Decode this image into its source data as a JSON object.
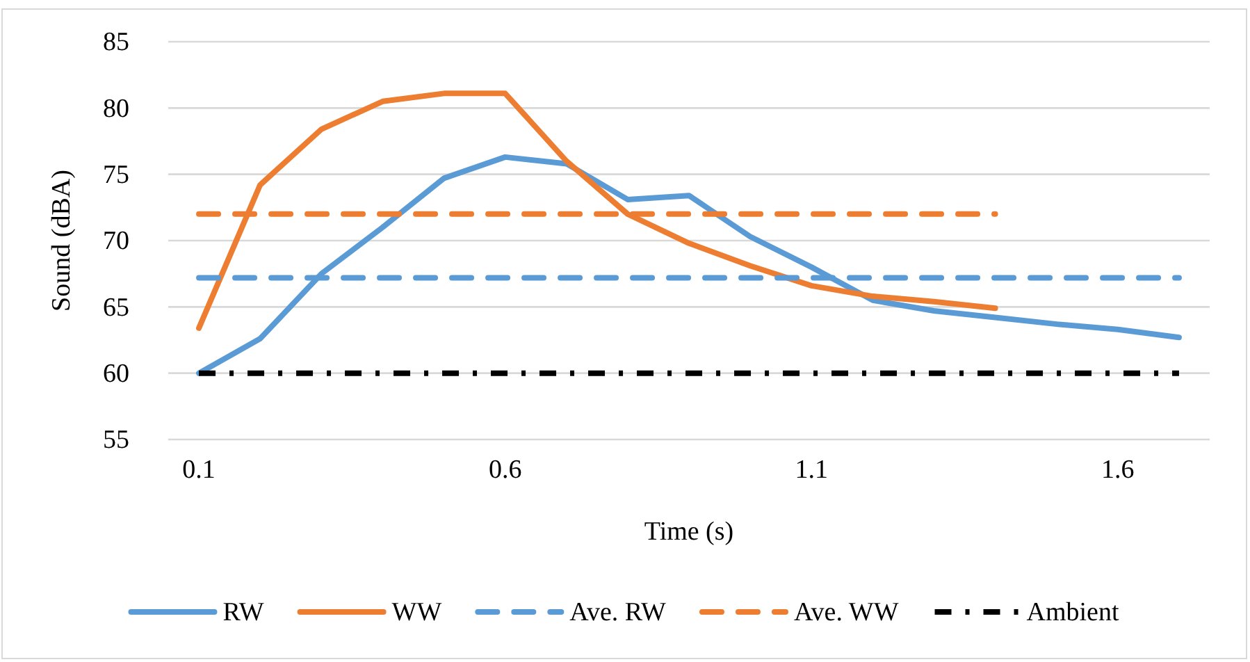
{
  "chart_data": {
    "type": "line",
    "xlabel": "Time (s)",
    "ylabel": "Sound (dBA)",
    "xlim": [
      0.05,
      1.75
    ],
    "xticks": [
      0.1,
      0.6,
      1.1,
      1.6
    ],
    "ylim": [
      55,
      85
    ],
    "yticks": [
      55,
      60,
      65,
      70,
      75,
      80,
      85
    ],
    "grid": "y",
    "legend": "bottom",
    "marker": "none",
    "series": [
      {
        "name": "RW",
        "color": "#5b9bd5",
        "line_style": "solid",
        "x": [
          0.1,
          0.2,
          0.3,
          0.4,
          0.5,
          0.6,
          0.7,
          0.8,
          0.9,
          1.0,
          1.1,
          1.2,
          1.3,
          1.4,
          1.5,
          1.6,
          1.7
        ],
        "values": [
          60,
          62.6,
          67.5,
          71,
          74.7,
          76.3,
          75.8,
          73.1,
          73.4,
          70.3,
          68,
          65.5,
          64.7,
          64.2,
          63.7,
          63.3,
          62.7
        ]
      },
      {
        "name": "WW",
        "color": "#ed7d31",
        "line_style": "solid",
        "x": [
          0.1,
          0.2,
          0.3,
          0.4,
          0.5,
          0.6,
          0.7,
          0.8,
          0.9,
          1.0,
          1.1,
          1.2,
          1.3,
          1.4
        ],
        "values": [
          63.4,
          74.2,
          78.4,
          80.5,
          81.1,
          81.1,
          76,
          72,
          69.8,
          68.1,
          66.6,
          65.8,
          65.4,
          64.9
        ]
      },
      {
        "name": "Ave. RW",
        "color": "#5b9bd5",
        "line_style": "dashed",
        "x": [
          0.1,
          1.7
        ],
        "values": [
          67.2,
          67.2
        ]
      },
      {
        "name": "Ave. WW",
        "color": "#ed7d31",
        "line_style": "dashed",
        "x": [
          0.1,
          1.4
        ],
        "values": [
          72,
          72
        ]
      },
      {
        "name": "Ambient",
        "color": "#000000",
        "line_style": "dashdot",
        "x": [
          0.1,
          1.7
        ],
        "values": [
          60,
          60
        ]
      }
    ]
  }
}
